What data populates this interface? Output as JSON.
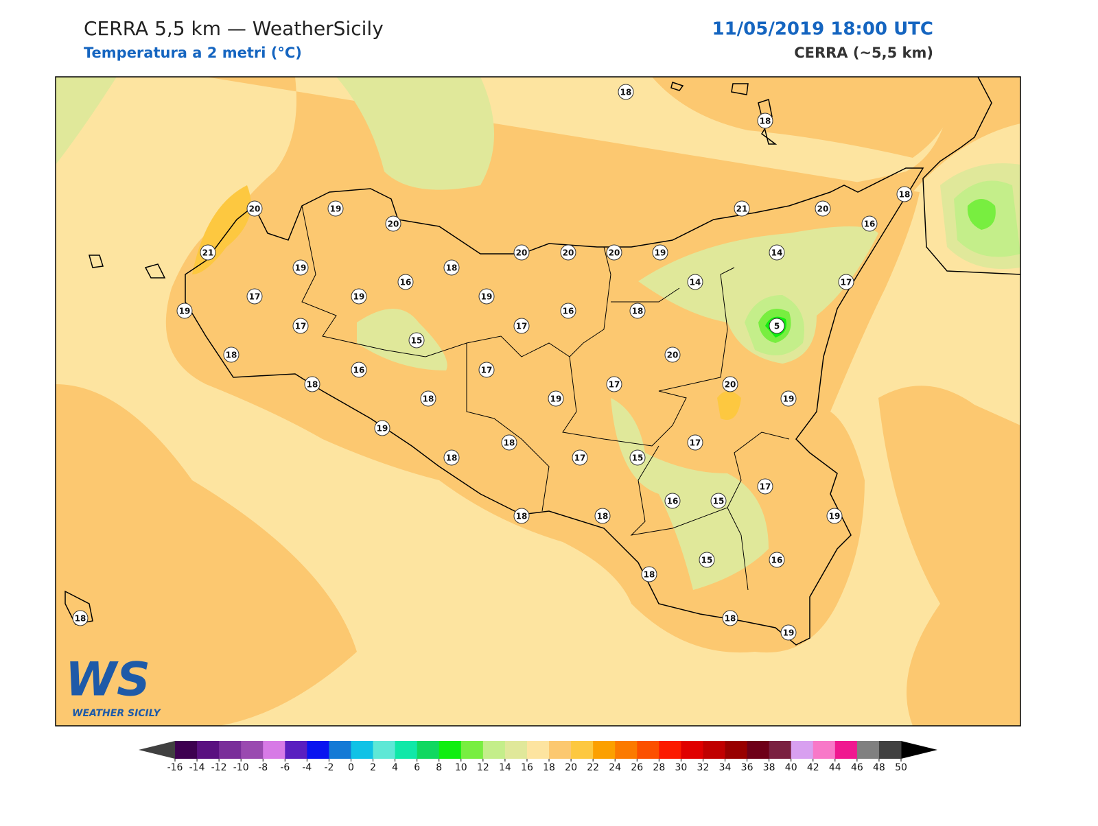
{
  "header": {
    "title": "CERRA 5,5 km — WeatherSicily",
    "subtitle": "Temperatura a 2 metri (°C)",
    "datetime": "11/05/2019 18:00 UTC",
    "model": "CERRA (~5,5 km)"
  },
  "map": {
    "stations": [
      18,
      18,
      20,
      19,
      20,
      21,
      20,
      18,
      16,
      21,
      20,
      20,
      20,
      19,
      14,
      19,
      18,
      16,
      14,
      17,
      17,
      19,
      19,
      19,
      16,
      18,
      17,
      17,
      5,
      15,
      18,
      20,
      16,
      17,
      18,
      17,
      20,
      18,
      19,
      19,
      19,
      17,
      18,
      18,
      17,
      15,
      17,
      16,
      15,
      19,
      18,
      18,
      15,
      16,
      18,
      18,
      19,
      18
    ]
  },
  "logo": {
    "mark": "WS",
    "text": "WEATHER SICILY"
  },
  "colorbar": {
    "ticks": [
      -16,
      -14,
      -12,
      -10,
      -8,
      -6,
      -4,
      -2,
      0,
      2,
      4,
      6,
      8,
      10,
      12,
      14,
      16,
      18,
      20,
      22,
      24,
      26,
      28,
      30,
      32,
      34,
      36,
      38,
      40,
      42,
      44,
      46,
      48,
      50
    ],
    "colors": [
      "#3d0050",
      "#5a1080",
      "#7a2e9a",
      "#9a4ab0",
      "#d77ae6",
      "#5a1fc0",
      "#0a14f0",
      "#147ad6",
      "#10c2e6",
      "#5ee8d6",
      "#10e8a8",
      "#10d860",
      "#10ee10",
      "#78ee40",
      "#c4ee8a",
      "#e0e89a",
      "#fde4a0",
      "#fcc870",
      "#fdc840",
      "#fca000",
      "#fc7a00",
      "#fc5000",
      "#fc1a00",
      "#e00000",
      "#c00000",
      "#980000",
      "#6e0018",
      "#7a2040",
      "#d8a0f0",
      "#f878c8",
      "#f01890",
      "#808080",
      "#404040"
    ],
    "under_color": "#404040",
    "over_color": "#000000"
  }
}
